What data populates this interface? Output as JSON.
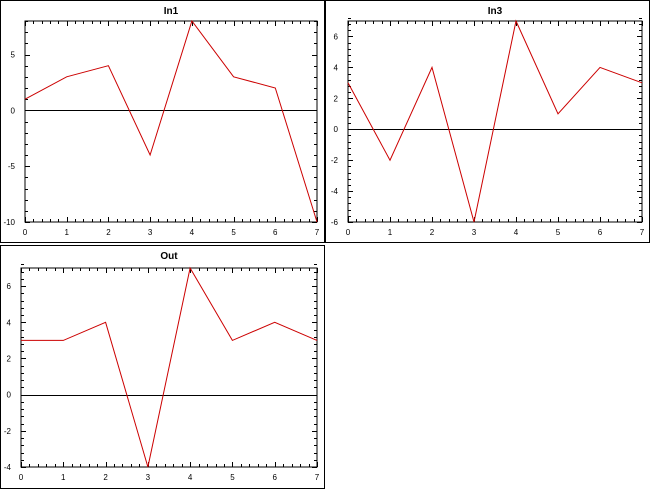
{
  "colors": {
    "series": "#cc0000",
    "axis": "#000000",
    "zero_line": "#000000"
  },
  "chart_data": [
    {
      "type": "line",
      "title": "In1",
      "x": [
        0,
        1,
        2,
        3,
        4,
        5,
        6,
        7
      ],
      "series": [
        {
          "values": [
            1,
            3,
            4,
            -4,
            8,
            3,
            2,
            -10
          ]
        }
      ],
      "xlim": [
        0,
        7
      ],
      "ylim": [
        -10,
        8
      ],
      "xticks": [
        0,
        1,
        2,
        3,
        4,
        5,
        6,
        7
      ],
      "yticks": [
        -10,
        -5,
        0,
        5
      ],
      "zero_line": true,
      "grid": false
    },
    {
      "type": "line",
      "title": "In3",
      "x": [
        0,
        1,
        2,
        3,
        4,
        5,
        6,
        7
      ],
      "series": [
        {
          "values": [
            3,
            -2,
            4,
            -6,
            7,
            1,
            4,
            3
          ]
        }
      ],
      "xlim": [
        0,
        7
      ],
      "ylim": [
        -6,
        7
      ],
      "xticks": [
        0,
        1,
        2,
        3,
        4,
        5,
        6,
        7
      ],
      "yticks": [
        -6,
        -4,
        -2,
        0,
        2,
        4,
        6
      ],
      "zero_line": true,
      "grid": false
    },
    {
      "type": "line",
      "title": "Out",
      "x": [
        0,
        1,
        2,
        3,
        4,
        5,
        6,
        7
      ],
      "series": [
        {
          "values": [
            3,
            3,
            4,
            -4,
            7,
            3,
            4,
            3
          ]
        }
      ],
      "xlim": [
        0,
        7
      ],
      "ylim": [
        -4,
        7
      ],
      "xticks": [
        0,
        1,
        2,
        3,
        4,
        5,
        6,
        7
      ],
      "yticks": [
        -4,
        -2,
        0,
        2,
        4,
        6
      ],
      "zero_line": true,
      "grid": false
    }
  ]
}
